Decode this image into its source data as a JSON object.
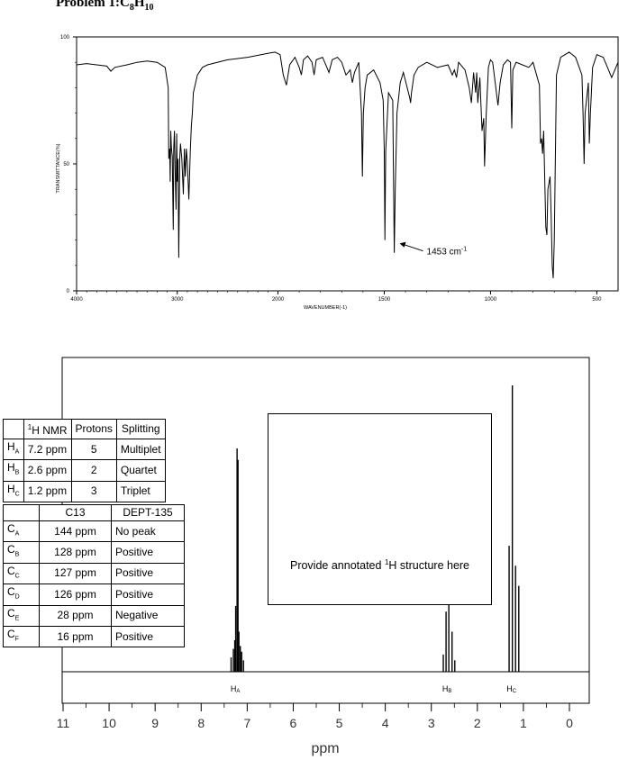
{
  "title": {
    "text": "Problem 1:",
    "formula": [
      {
        "el": "C"
      },
      {
        "el": "8",
        "sub": true
      },
      {
        "el": "H"
      },
      {
        "el": "10",
        "sub": true
      }
    ]
  },
  "chart_data": [
    {
      "type": "line",
      "name": "IR spectrum",
      "ylabel": "TRANSMITTANCE(%)",
      "xlabel": "WAVENUMBER(-1)",
      "xlim": [
        4000,
        400
      ],
      "ylim": [
        0,
        100
      ],
      "x_ticks": [
        4000,
        3000,
        2000,
        1500,
        1000,
        500
      ],
      "y_ticks": [
        0,
        50,
        100
      ],
      "x_tick_labels": [
        "4000",
        "3000",
        "2000",
        "1500",
        "1000",
        "500"
      ],
      "y_tick_labels": [
        "0",
        "50",
        "100"
      ],
      "annotation": {
        "text": "1453 cm",
        "superscript": "-1",
        "x": 1453,
        "y": 15
      },
      "points": [
        [
          4000,
          89
        ],
        [
          3900,
          89.5
        ],
        [
          3800,
          89
        ],
        [
          3700,
          88.5
        ],
        [
          3660,
          86.5
        ],
        [
          3620,
          88
        ],
        [
          3500,
          89
        ],
        [
          3400,
          90
        ],
        [
          3300,
          90.5
        ],
        [
          3200,
          90
        ],
        [
          3120,
          88
        ],
        [
          3090,
          80
        ],
        [
          3085,
          52
        ],
        [
          3075,
          56
        ],
        [
          3070,
          43
        ],
        [
          3065,
          63
        ],
        [
          3058,
          56
        ],
        [
          3050,
          53
        ],
        [
          3040,
          24
        ],
        [
          3035,
          56
        ],
        [
          3028,
          63
        ],
        [
          3020,
          46
        ],
        [
          3012,
          32
        ],
        [
          3006,
          62
        ],
        [
          3000,
          43
        ],
        [
          2992,
          52
        ],
        [
          2985,
          13
        ],
        [
          2975,
          52
        ],
        [
          2968,
          58
        ],
        [
          2955,
          52
        ],
        [
          2940,
          38
        ],
        [
          2930,
          56
        ],
        [
          2920,
          45
        ],
        [
          2910,
          56
        ],
        [
          2900,
          51
        ],
        [
          2885,
          36
        ],
        [
          2870,
          56
        ],
        [
          2860,
          65
        ],
        [
          2850,
          70
        ],
        [
          2840,
          78
        ],
        [
          2800,
          85
        ],
        [
          2750,
          88
        ],
        [
          2700,
          89
        ],
        [
          2500,
          91
        ],
        [
          2300,
          92
        ],
        [
          2100,
          93.5
        ],
        [
          2030,
          94
        ],
        [
          1990,
          93
        ],
        [
          1975,
          85
        ],
        [
          1960,
          81
        ],
        [
          1945,
          89
        ],
        [
          1920,
          92
        ],
        [
          1900,
          88
        ],
        [
          1890,
          85
        ],
        [
          1880,
          91
        ],
        [
          1860,
          92.5
        ],
        [
          1840,
          90
        ],
        [
          1830,
          85
        ],
        [
          1820,
          91
        ],
        [
          1790,
          92
        ],
        [
          1770,
          88
        ],
        [
          1760,
          86
        ],
        [
          1745,
          91
        ],
        [
          1720,
          92
        ],
        [
          1700,
          90
        ],
        [
          1680,
          85
        ],
        [
          1660,
          87
        ],
        [
          1650,
          82
        ],
        [
          1640,
          86
        ],
        [
          1620,
          90
        ],
        [
          1607,
          70
        ],
        [
          1603,
          45
        ],
        [
          1598,
          70
        ],
        [
          1590,
          80
        ],
        [
          1580,
          85
        ],
        [
          1550,
          87
        ],
        [
          1520,
          82
        ],
        [
          1505,
          75
        ],
        [
          1500,
          55
        ],
        [
          1497,
          20
        ],
        [
          1493,
          55
        ],
        [
          1480,
          78
        ],
        [
          1460,
          75
        ],
        [
          1453,
          15
        ],
        [
          1448,
          40
        ],
        [
          1440,
          70
        ],
        [
          1425,
          82
        ],
        [
          1410,
          86
        ],
        [
          1380,
          76
        ],
        [
          1376,
          74
        ],
        [
          1372,
          78
        ],
        [
          1360,
          85
        ],
        [
          1340,
          88
        ],
        [
          1300,
          90
        ],
        [
          1250,
          88
        ],
        [
          1200,
          89
        ],
        [
          1180,
          85
        ],
        [
          1170,
          87
        ],
        [
          1160,
          84
        ],
        [
          1150,
          90
        ],
        [
          1120,
          87
        ],
        [
          1100,
          80
        ],
        [
          1090,
          74
        ],
        [
          1080,
          86
        ],
        [
          1070,
          78
        ],
        [
          1065,
          86
        ],
        [
          1060,
          74
        ],
        [
          1050,
          84
        ],
        [
          1040,
          63
        ],
        [
          1032,
          68
        ],
        [
          1028,
          49
        ],
        [
          1020,
          70
        ],
        [
          1010,
          88
        ],
        [
          1000,
          91
        ],
        [
          990,
          90
        ],
        [
          975,
          80
        ],
        [
          965,
          73
        ],
        [
          955,
          82
        ],
        [
          940,
          89
        ],
        [
          920,
          91
        ],
        [
          906,
          90
        ],
        [
          900,
          64
        ],
        [
          895,
          87
        ],
        [
          880,
          90
        ],
        [
          850,
          89
        ],
        [
          820,
          88
        ],
        [
          800,
          90
        ],
        [
          770,
          81
        ],
        [
          765,
          58
        ],
        [
          760,
          60
        ],
        [
          755,
          54
        ],
        [
          750,
          63
        ],
        [
          740,
          25
        ],
        [
          735,
          22
        ],
        [
          730,
          40
        ],
        [
          720,
          45
        ],
        [
          715,
          30
        ],
        [
          710,
          10
        ],
        [
          705,
          5
        ],
        [
          700,
          20
        ],
        [
          690,
          85
        ],
        [
          670,
          92
        ],
        [
          630,
          94
        ],
        [
          600,
          92
        ],
        [
          570,
          85
        ],
        [
          565,
          70
        ],
        [
          560,
          50
        ],
        [
          555,
          70
        ],
        [
          540,
          82
        ],
        [
          535,
          58
        ],
        [
          530,
          70
        ],
        [
          520,
          88
        ],
        [
          500,
          93
        ],
        [
          470,
          92
        ],
        [
          450,
          88
        ],
        [
          430,
          84
        ],
        [
          410,
          88
        ],
        [
          400,
          90
        ]
      ]
    },
    {
      "type": "line",
      "name": "1H NMR spectrum",
      "xlabel": "ppm",
      "xlim": [
        11,
        0
      ],
      "x_ticks": [
        11,
        10,
        9,
        8,
        7,
        6,
        5,
        4,
        3,
        2,
        1,
        0
      ],
      "x_tick_labels": [
        "11",
        "10",
        "9",
        "8",
        "7",
        "6",
        "5",
        "4",
        "3",
        "2",
        "1",
        "0"
      ],
      "peak_labels": [
        {
          "base": "H",
          "sub": "A",
          "ppm": 7.2
        },
        {
          "base": "H",
          "sub": "B",
          "ppm": 2.6
        },
        {
          "base": "H",
          "sub": "C",
          "ppm": 1.2
        }
      ],
      "peaks": [
        {
          "ppm": 7.35,
          "h": 0.05
        },
        {
          "ppm": 7.3,
          "h": 0.08
        },
        {
          "ppm": 7.27,
          "h": 0.11
        },
        {
          "ppm": 7.25,
          "h": 0.23
        },
        {
          "ppm": 7.22,
          "h": 0.78
        },
        {
          "ppm": 7.2,
          "h": 0.74
        },
        {
          "ppm": 7.18,
          "h": 0.14
        },
        {
          "ppm": 7.15,
          "h": 0.09
        },
        {
          "ppm": 7.12,
          "h": 0.07
        },
        {
          "ppm": 7.08,
          "h": 0.04
        },
        {
          "ppm": 2.74,
          "h": 0.06
        },
        {
          "ppm": 2.68,
          "h": 0.21
        },
        {
          "ppm": 2.62,
          "h": 0.24
        },
        {
          "ppm": 2.55,
          "h": 0.14
        },
        {
          "ppm": 2.49,
          "h": 0.04
        },
        {
          "ppm": 1.31,
          "h": 0.44
        },
        {
          "ppm": 1.24,
          "h": 1.0
        },
        {
          "ppm": 1.17,
          "h": 0.37
        },
        {
          "ppm": 1.1,
          "h": 0.3
        }
      ]
    }
  ],
  "h_nmr_table": {
    "headers": [
      {
        "sup": "1",
        "text": "H NMR"
      },
      {
        "text": "Protons"
      },
      {
        "text": "Splitting"
      }
    ],
    "rows": [
      {
        "label": "H",
        "sub": "A",
        "shift": "7.2 ppm",
        "protons": "5",
        "splitting": "Multiplet"
      },
      {
        "label": "H",
        "sub": "B",
        "shift": "2.6 ppm",
        "protons": "2",
        "splitting": "Quartet"
      },
      {
        "label": "H",
        "sub": "C",
        "shift": "1.2 ppm",
        "protons": "3",
        "splitting": "Triplet"
      }
    ]
  },
  "c13_table": {
    "headers": [
      "C13",
      "DEPT-135"
    ],
    "rows": [
      {
        "label": "C",
        "sub": "A",
        "shift": "144 ppm",
        "dept": "No peak"
      },
      {
        "label": "C",
        "sub": "B",
        "shift": "128 ppm",
        "dept": "Positive"
      },
      {
        "label": "C",
        "sub": "C",
        "shift": "127 ppm",
        "dept": "Positive"
      },
      {
        "label": "C",
        "sub": "D",
        "shift": "126 ppm",
        "dept": "Positive"
      },
      {
        "label": "C",
        "sub": "E",
        "shift": "28 ppm",
        "dept": "Negative"
      },
      {
        "label": "C",
        "sub": "F",
        "shift": "16 ppm",
        "dept": "Positive"
      }
    ]
  },
  "structure_box": {
    "text_prefix": "Provide annotated ",
    "sup": "1",
    "text_suffix": "H structure here"
  }
}
